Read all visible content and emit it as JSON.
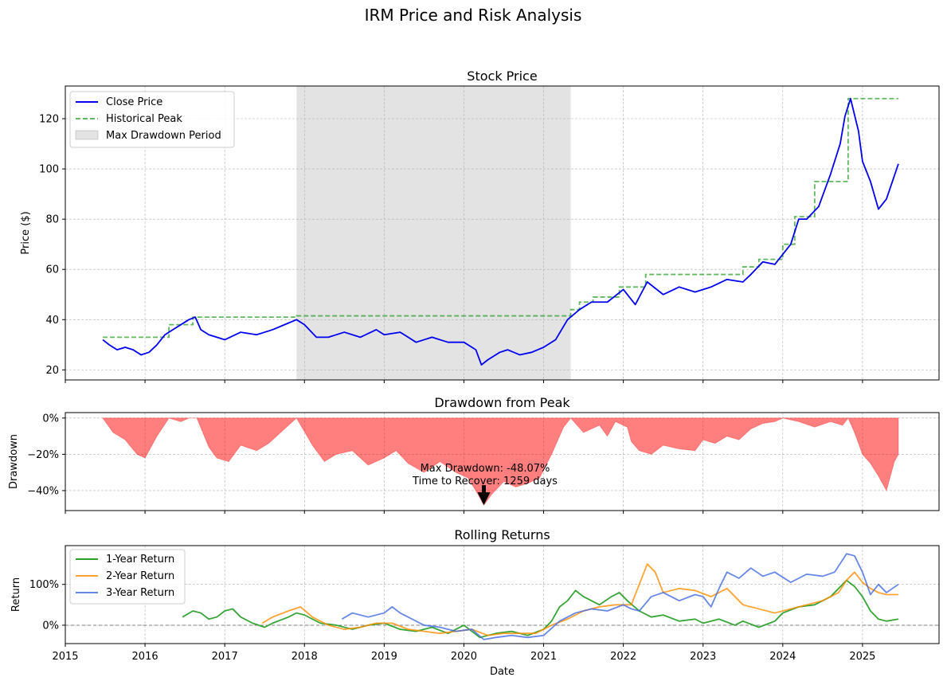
{
  "figure": {
    "title": "IRM Price and Risk Analysis"
  },
  "chart_data": [
    {
      "type": "line",
      "title": "Stock Price",
      "xlabel": "",
      "ylabel": "Price ($)",
      "xlim": [
        2015.0,
        2025.96
      ],
      "ylim": [
        16,
        133
      ],
      "yticks": [
        20,
        40,
        60,
        80,
        100,
        120
      ],
      "ytick_labels": [
        "20",
        "40",
        "60",
        "80",
        "100",
        "120"
      ],
      "grid": true,
      "legend": {
        "placement": "upper left",
        "entries": [
          "Close Price",
          "Historical Peak",
          "Max Drawdown Period"
        ]
      },
      "max_drawdown_period": [
        2017.9,
        2021.34
      ],
      "series": [
        {
          "name": "Close Price",
          "color": "#0000ee",
          "x": [
            2015.47,
            2015.55,
            2015.65,
            2015.75,
            2015.85,
            2015.95,
            2016.05,
            2016.15,
            2016.25,
            2016.4,
            2016.55,
            2016.63,
            2016.7,
            2016.8,
            2016.9,
            2017.0,
            2017.2,
            2017.4,
            2017.6,
            2017.75,
            2017.9,
            2018.0,
            2018.15,
            2018.3,
            2018.5,
            2018.7,
            2018.9,
            2019.0,
            2019.2,
            2019.4,
            2019.6,
            2019.8,
            2020.0,
            2020.15,
            2020.22,
            2020.3,
            2020.45,
            2020.55,
            2020.7,
            2020.85,
            2021.0,
            2021.15,
            2021.3,
            2021.45,
            2021.6,
            2021.8,
            2022.0,
            2022.15,
            2022.3,
            2022.5,
            2022.7,
            2022.9,
            2023.1,
            2023.3,
            2023.5,
            2023.6,
            2023.75,
            2023.9,
            2024.1,
            2024.2,
            2024.3,
            2024.45,
            2024.6,
            2024.72,
            2024.78,
            2024.85,
            2024.95,
            2025.0,
            2025.1,
            2025.2,
            2025.3,
            2025.45
          ],
          "y": [
            32,
            30,
            28,
            29,
            28,
            26,
            27,
            30,
            34,
            37,
            40,
            41,
            36,
            34,
            33,
            32,
            35,
            34,
            36,
            38,
            40,
            38,
            33,
            33,
            35,
            33,
            36,
            34,
            35,
            31,
            33,
            31,
            31,
            28,
            22,
            24,
            27,
            28,
            26,
            27,
            29,
            32,
            40,
            44,
            47,
            47,
            52,
            46,
            55,
            50,
            53,
            51,
            53,
            56,
            55,
            58,
            63,
            62,
            70,
            80,
            80,
            85,
            98,
            110,
            121,
            128,
            115,
            103,
            95,
            84,
            88,
            102
          ]
        },
        {
          "name": "Historical Peak",
          "color": "#2ca02c",
          "x": [
            2015.47,
            2016.3,
            2016.3,
            2016.6,
            2016.6,
            2017.9,
            2017.9,
            2021.34,
            2021.34,
            2021.45,
            2021.45,
            2021.62,
            2021.62,
            2021.95,
            2021.95,
            2022.28,
            2022.28,
            2023.5,
            2023.5,
            2023.7,
            2023.7,
            2024.0,
            2024.0,
            2024.15,
            2024.15,
            2024.4,
            2024.4,
            2024.82,
            2024.82,
            2025.45
          ],
          "y": [
            33,
            33,
            38,
            38,
            41,
            41,
            41.5,
            41.5,
            44,
            44,
            47,
            47,
            49,
            49,
            53,
            53,
            58,
            58,
            61,
            61,
            64,
            64,
            70,
            70,
            81,
            81,
            95,
            95,
            128,
            128
          ]
        }
      ]
    },
    {
      "type": "area",
      "title": "Drawdown from Peak",
      "xlabel": "",
      "ylabel": "Drawdown",
      "xlim": [
        2015.0,
        2025.96
      ],
      "ylim": [
        -0.51,
        0.03
      ],
      "yticks": [
        0,
        -0.2,
        -0.4
      ],
      "ytick_labels": [
        "0%",
        "−20%",
        "−40%"
      ],
      "grid": true,
      "fill_color": "#ff0000",
      "x": [
        2015.47,
        2015.6,
        2015.75,
        2015.9,
        2016.0,
        2016.15,
        2016.3,
        2016.45,
        2016.55,
        2016.65,
        2016.8,
        2016.9,
        2017.05,
        2017.2,
        2017.4,
        2017.55,
        2017.7,
        2017.9,
        2018.1,
        2018.25,
        2018.4,
        2018.6,
        2018.8,
        2019.0,
        2019.15,
        2019.3,
        2019.5,
        2019.7,
        2019.9,
        2020.05,
        2020.15,
        2020.25,
        2020.35,
        2020.5,
        2020.65,
        2020.8,
        2020.95,
        2021.1,
        2021.25,
        2021.34,
        2021.5,
        2021.7,
        2021.8,
        2021.9,
        2022.05,
        2022.1,
        2022.2,
        2022.35,
        2022.5,
        2022.7,
        2022.9,
        2023.0,
        2023.15,
        2023.3,
        2023.45,
        2023.6,
        2023.75,
        2023.9,
        2024.0,
        2024.2,
        2024.4,
        2024.6,
        2024.75,
        2024.82,
        2024.9,
        2025.0,
        2025.1,
        2025.2,
        2025.3,
        2025.4,
        2025.45
      ],
      "y": [
        0,
        -0.08,
        -0.12,
        -0.2,
        -0.22,
        -0.1,
        0,
        -0.02,
        0,
        0,
        -0.16,
        -0.22,
        -0.24,
        -0.15,
        -0.18,
        -0.14,
        -0.08,
        0,
        -0.15,
        -0.24,
        -0.2,
        -0.18,
        -0.26,
        -0.22,
        -0.18,
        -0.25,
        -0.3,
        -0.24,
        -0.3,
        -0.33,
        -0.4,
        -0.48,
        -0.42,
        -0.35,
        -0.38,
        -0.36,
        -0.33,
        -0.2,
        -0.05,
        0,
        -0.08,
        -0.04,
        -0.1,
        -0.02,
        -0.05,
        -0.13,
        -0.18,
        -0.2,
        -0.15,
        -0.17,
        -0.18,
        -0.12,
        -0.14,
        -0.1,
        -0.12,
        -0.06,
        -0.03,
        -0.02,
        0,
        -0.02,
        -0.05,
        -0.02,
        -0.04,
        0,
        -0.08,
        -0.2,
        -0.25,
        -0.32,
        -0.4,
        -0.24,
        -0.2
      ],
      "annotation": {
        "lines": [
          "Max Drawdown: -48.07%",
          "Time to Recover: 1259 days"
        ],
        "target_x": 2020.25,
        "target_y": -0.48
      }
    },
    {
      "type": "line",
      "title": "Rolling Returns",
      "xlabel": "Date",
      "ylabel": "Return",
      "xlim": [
        2015.0,
        2025.96
      ],
      "ylim": [
        -0.45,
        1.95
      ],
      "yticks": [
        0,
        1.0
      ],
      "ytick_labels": [
        "0%",
        "100%"
      ],
      "xticks": [
        2015,
        2016,
        2017,
        2018,
        2019,
        2020,
        2021,
        2022,
        2023,
        2024,
        2025
      ],
      "xtick_labels": [
        "2015",
        "2016",
        "2017",
        "2018",
        "2019",
        "2020",
        "2021",
        "2022",
        "2023",
        "2024",
        "2025"
      ],
      "grid": true,
      "zero_line": true,
      "legend": {
        "placement": "upper left",
        "entries": [
          "1-Year Return",
          "2-Year Return",
          "3-Year Return"
        ]
      },
      "series": [
        {
          "name": "1-Year Return",
          "color": "#2ca02c",
          "x": [
            2016.47,
            2016.6,
            2016.7,
            2016.8,
            2016.9,
            2017.0,
            2017.1,
            2017.2,
            2017.35,
            2017.5,
            2017.6,
            2017.8,
            2017.9,
            2018.0,
            2018.2,
            2018.4,
            2018.6,
            2018.8,
            2019.0,
            2019.2,
            2019.4,
            2019.6,
            2019.8,
            2020.0,
            2020.2,
            2020.4,
            2020.6,
            2020.8,
            2021.0,
            2021.1,
            2021.2,
            2021.3,
            2021.4,
            2021.5,
            2021.7,
            2021.85,
            2021.95,
            2022.05,
            2022.2,
            2022.35,
            2022.5,
            2022.7,
            2022.9,
            2023.0,
            2023.2,
            2023.4,
            2023.5,
            2023.7,
            2023.9,
            2024.0,
            2024.2,
            2024.4,
            2024.6,
            2024.8,
            2024.9,
            2025.0,
            2025.1,
            2025.2,
            2025.3,
            2025.45
          ],
          "y": [
            0.2,
            0.35,
            0.3,
            0.15,
            0.2,
            0.35,
            0.4,
            0.2,
            0.05,
            -0.05,
            0.05,
            0.2,
            0.3,
            0.25,
            0.05,
            0,
            -0.1,
            0,
            0.05,
            -0.1,
            -0.15,
            -0.05,
            -0.2,
            0,
            -0.3,
            -0.2,
            -0.15,
            -0.25,
            -0.1,
            0.1,
            0.45,
            0.6,
            0.85,
            0.7,
            0.5,
            0.7,
            0.8,
            0.6,
            0.35,
            0.2,
            0.25,
            0.1,
            0.15,
            0.05,
            0.15,
            0,
            0.1,
            -0.05,
            0.1,
            0.3,
            0.45,
            0.5,
            0.7,
            1.1,
            0.95,
            0.7,
            0.35,
            0.15,
            0.1,
            0.15
          ]
        },
        {
          "name": "2-Year Return",
          "color": "#ff8c00",
          "x": [
            2017.47,
            2017.6,
            2017.8,
            2017.95,
            2018.1,
            2018.3,
            2018.5,
            2018.7,
            2018.9,
            2019.1,
            2019.3,
            2019.5,
            2019.7,
            2019.9,
            2020.1,
            2020.3,
            2020.5,
            2020.7,
            2020.9,
            2021.1,
            2021.3,
            2021.5,
            2021.7,
            2021.9,
            2022.1,
            2022.2,
            2022.3,
            2022.4,
            2022.5,
            2022.7,
            2022.9,
            2023.1,
            2023.3,
            2023.5,
            2023.7,
            2023.9,
            2024.1,
            2024.3,
            2024.5,
            2024.7,
            2024.8,
            2024.9,
            2025.0,
            2025.1,
            2025.2,
            2025.3,
            2025.45
          ],
          "y": [
            0.05,
            0.2,
            0.35,
            0.45,
            0.2,
            0,
            -0.1,
            -0.05,
            0.05,
            0.05,
            -0.1,
            -0.15,
            -0.2,
            -0.15,
            -0.1,
            -0.25,
            -0.2,
            -0.2,
            -0.2,
            0,
            0.15,
            0.35,
            0.45,
            0.5,
            0.5,
            1.0,
            1.5,
            1.3,
            0.8,
            0.9,
            0.85,
            0.7,
            0.9,
            0.5,
            0.4,
            0.3,
            0.4,
            0.5,
            0.6,
            0.8,
            1.1,
            1.3,
            1.05,
            0.9,
            0.8,
            0.75,
            0.75
          ]
        },
        {
          "name": "3-Year Return",
          "color": "#4169e1",
          "x": [
            2018.47,
            2018.6,
            2018.8,
            2019.0,
            2019.1,
            2019.2,
            2019.35,
            2019.5,
            2019.7,
            2019.9,
            2020.1,
            2020.25,
            2020.4,
            2020.6,
            2020.8,
            2021.0,
            2021.2,
            2021.4,
            2021.6,
            2021.8,
            2022.0,
            2022.1,
            2022.2,
            2022.35,
            2022.5,
            2022.7,
            2022.9,
            2023.0,
            2023.1,
            2023.2,
            2023.3,
            2023.45,
            2023.6,
            2023.75,
            2023.9,
            2024.1,
            2024.3,
            2024.5,
            2024.65,
            2024.8,
            2024.9,
            2025.0,
            2025.1,
            2025.2,
            2025.3,
            2025.45
          ],
          "y": [
            0.15,
            0.3,
            0.2,
            0.3,
            0.45,
            0.3,
            0.15,
            0,
            -0.05,
            -0.15,
            -0.1,
            -0.35,
            -0.3,
            -0.25,
            -0.3,
            -0.25,
            0.1,
            0.3,
            0.4,
            0.35,
            0.5,
            0.4,
            0.35,
            0.7,
            0.8,
            0.6,
            0.75,
            0.7,
            0.45,
            0.9,
            1.3,
            1.15,
            1.4,
            1.2,
            1.3,
            1.05,
            1.25,
            1.2,
            1.3,
            1.75,
            1.7,
            1.3,
            0.75,
            1.0,
            0.8,
            1.0
          ]
        }
      ]
    }
  ]
}
